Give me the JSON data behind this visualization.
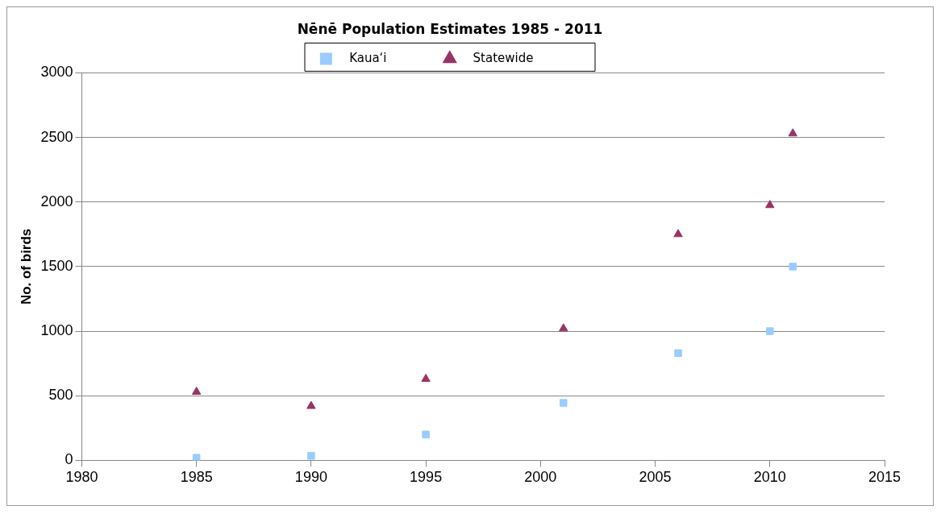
{
  "chart_data": {
    "type": "scatter",
    "title": "Nēnē Population Estimates 1985 - 2011",
    "ylabel": "No. of birds",
    "x": [
      1985,
      1990,
      1995,
      2001,
      2006,
      2010,
      2011
    ],
    "series": [
      {
        "name": "Kaua‘i",
        "color": "#99ccff",
        "marker": "square",
        "values": [
          20,
          35,
          200,
          445,
          830,
          1000,
          1500
        ]
      },
      {
        "name": "Statewide",
        "color": "#993366",
        "marker": "triangle",
        "values": [
          530,
          420,
          630,
          1020,
          1750,
          1975,
          2530
        ]
      }
    ],
    "xlim": [
      1980,
      2015
    ],
    "xticks": [
      1980,
      1985,
      1990,
      1995,
      2000,
      2005,
      2010,
      2015
    ],
    "ylim": [
      0,
      3000
    ],
    "yticks": [
      0,
      500,
      1000,
      1500,
      2000,
      2500,
      3000
    ],
    "grid": "y",
    "legend": "top"
  }
}
